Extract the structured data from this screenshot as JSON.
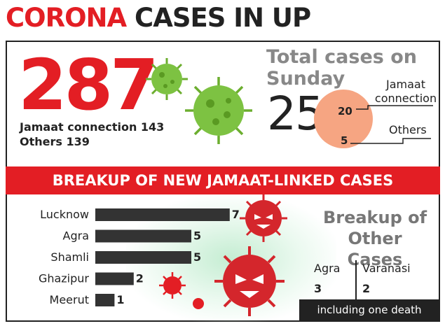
{
  "title": {
    "word1": "CORONA",
    "word2": "CASES IN UP"
  },
  "total": {
    "value": "287",
    "jamaat_line": "Jamaat connection 143",
    "others_line": "Others 139"
  },
  "sunday": {
    "title_line1": "Total cases on",
    "title_line2": "Sunday",
    "value": "25",
    "jamaat_value": "20",
    "others_value": "5",
    "jamaat_label_line1": "Jamaat",
    "jamaat_label_line2": "connection",
    "others_label": "Others",
    "circle_color": "#f6a582"
  },
  "banner": {
    "text": "BREAKUP OF NEW JAMAAT-LINKED CASES",
    "color": "#e31e24"
  },
  "chart_data": {
    "type": "bar",
    "orientation": "horizontal",
    "categories": [
      "Lucknow",
      "Agra",
      "Shamli",
      "Ghazipur",
      "Meerut"
    ],
    "values": [
      7,
      5,
      5,
      2,
      1
    ],
    "bar_color": "#333333",
    "xlim": [
      0,
      7
    ]
  },
  "other_cases": {
    "title_line1": "Breakup of",
    "title_line2": "Other Cases",
    "agra_label": "Agra",
    "agra_value": "3",
    "varanasi_label": "Varanasi",
    "varanasi_value": "2",
    "note": "including one death"
  },
  "colors": {
    "red": "#e31e24",
    "green_virus": "#7dc242",
    "dark": "#222222"
  },
  "icons": [
    "green-virus-icon",
    "red-virus-icon"
  ]
}
